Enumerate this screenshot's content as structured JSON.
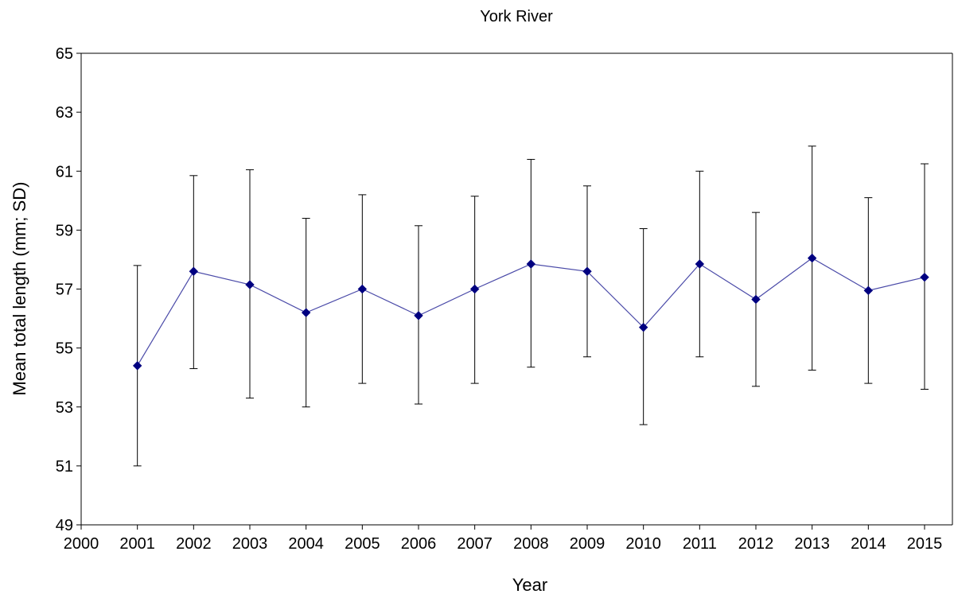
{
  "chart_data": {
    "type": "line",
    "title": "York River",
    "xlabel": "Year",
    "ylabel": "Mean total length (mm; SD)",
    "xlim": [
      2000,
      2015
    ],
    "ylim": [
      49,
      65
    ],
    "x_ticks": [
      "2000",
      "2001",
      "2002",
      "2003",
      "2004",
      "2005",
      "2006",
      "2007",
      "2008",
      "2009",
      "2010",
      "2011",
      "2012",
      "2013",
      "2014",
      "2015"
    ],
    "y_ticks": [
      "49",
      "51",
      "53",
      "55",
      "57",
      "59",
      "61",
      "63",
      "65"
    ],
    "grid": false,
    "legend": "none",
    "series": [
      {
        "color": "#000080",
        "line_color": "#4a4aa8",
        "marker": "diamond",
        "x": [
          2001,
          2002,
          2003,
          2004,
          2005,
          2006,
          2007,
          2008,
          2009,
          2010,
          2011,
          2012,
          2013,
          2014,
          2015
        ],
        "y": [
          54.4,
          57.6,
          57.15,
          56.2,
          57.0,
          56.1,
          57.0,
          57.85,
          57.6,
          55.7,
          57.85,
          56.65,
          58.05,
          56.95,
          57.4
        ],
        "error_low": [
          51.0,
          54.3,
          53.3,
          53.0,
          53.8,
          53.1,
          53.8,
          54.35,
          54.7,
          52.4,
          54.7,
          53.7,
          54.25,
          53.8,
          53.6
        ],
        "error_high": [
          57.8,
          60.85,
          61.05,
          59.4,
          60.2,
          59.15,
          60.15,
          61.4,
          60.5,
          59.05,
          61.0,
          59.6,
          61.85,
          60.1,
          61.25
        ]
      }
    ]
  }
}
